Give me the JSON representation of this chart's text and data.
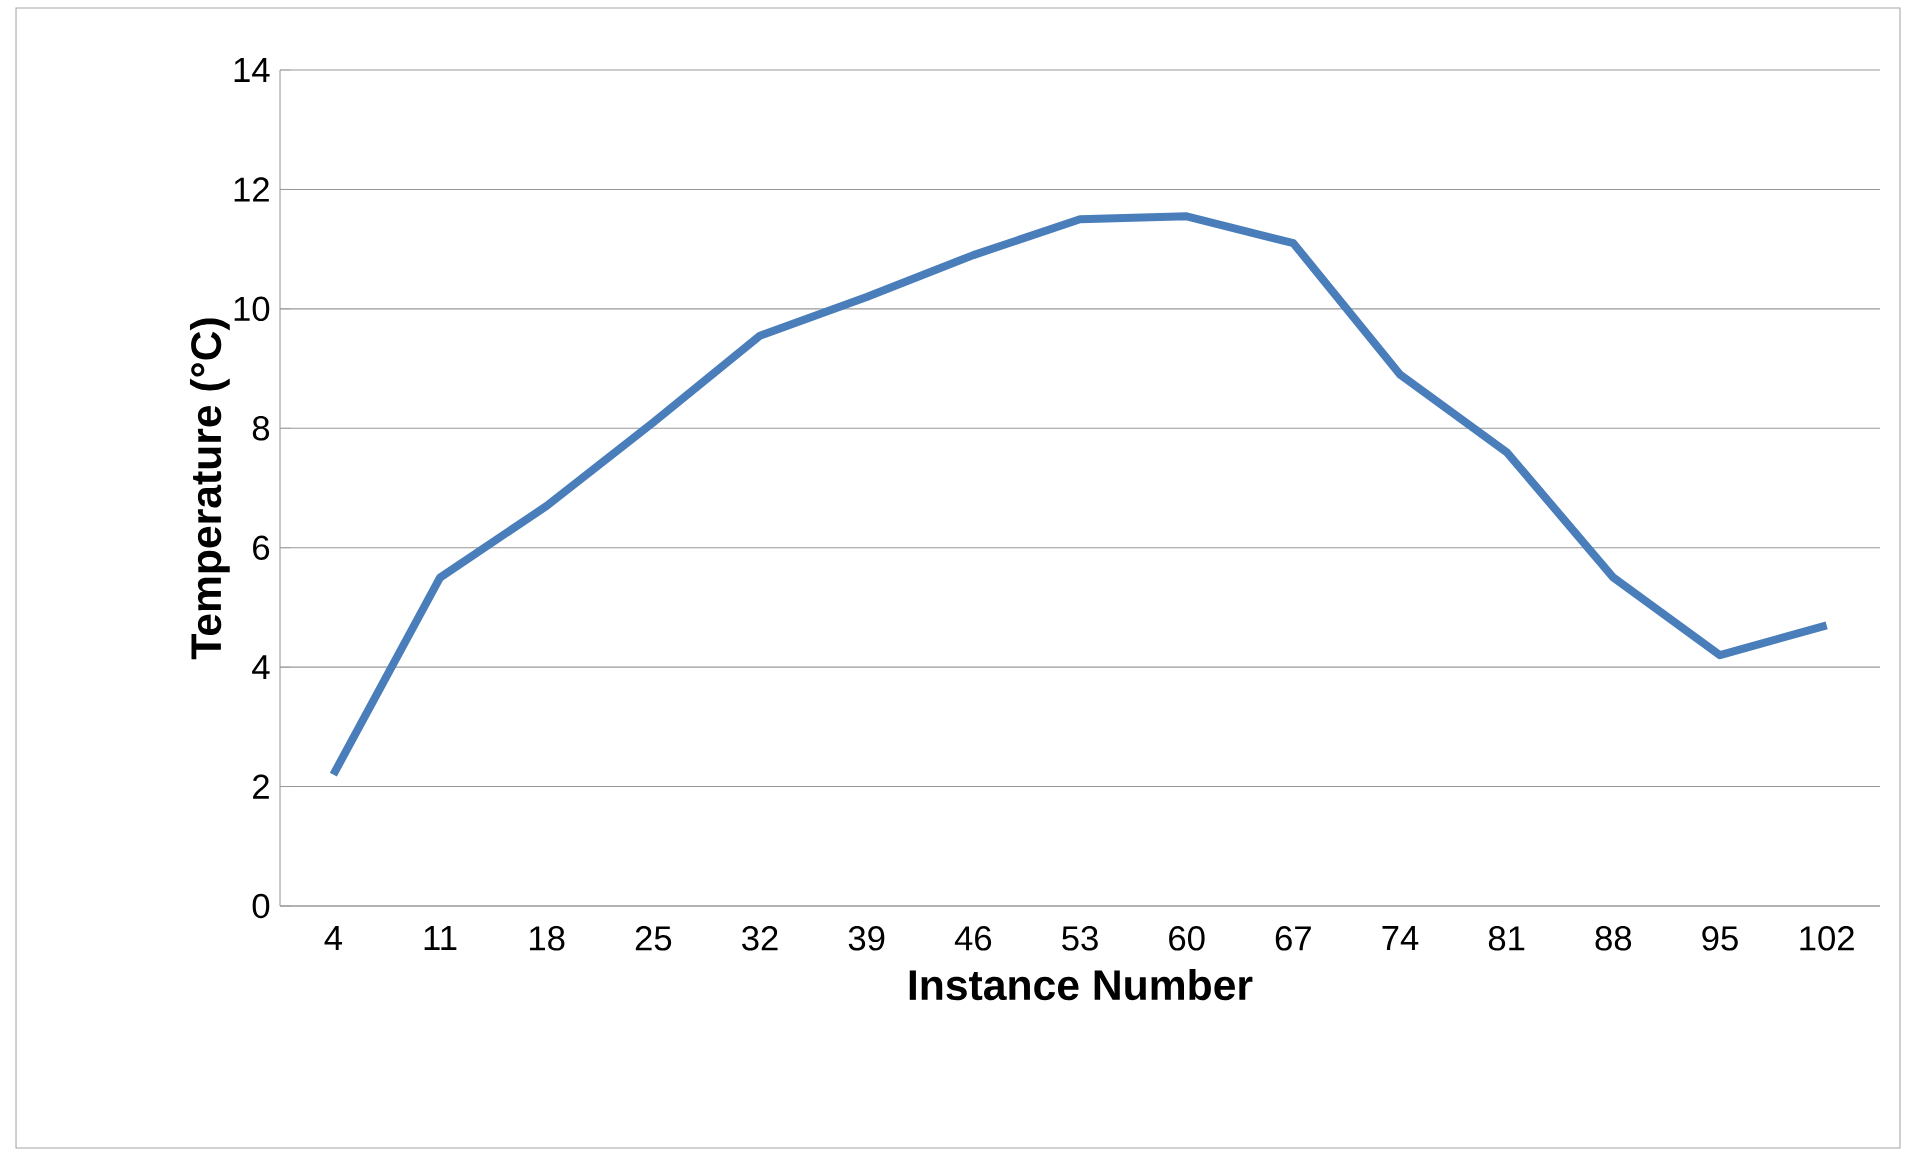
{
  "chart_data": {
    "type": "line",
    "xlabel": "Instance Number",
    "ylabel": "Temperature (°C)",
    "categories": [
      "4",
      "11",
      "18",
      "25",
      "32",
      "39",
      "46",
      "53",
      "60",
      "67",
      "74",
      "81",
      "88",
      "95",
      "102"
    ],
    "series": [
      {
        "color": "#4a7ebb",
        "values": [
          2.2,
          5.5,
          6.7,
          8.1,
          9.55,
          10.2,
          10.9,
          11.5,
          11.55,
          11.1,
          8.9,
          7.6,
          5.5,
          4.2,
          4.7
        ]
      }
    ],
    "ylim": [
      0,
      14
    ],
    "yticks": [
      0,
      2,
      4,
      6,
      8,
      10,
      12,
      14
    ],
    "grid": "y",
    "legend": false,
    "marker": "none",
    "line_style": "solid"
  }
}
